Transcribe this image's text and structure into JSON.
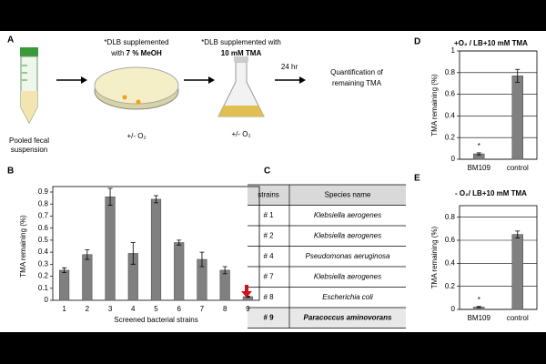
{
  "panel_labels": [
    "A",
    "B",
    "C",
    "D",
    "E"
  ],
  "diagram": {
    "tube_label": [
      "Pooled fecal",
      "suspension"
    ],
    "dish_label": [
      "*DLB supplemented",
      "with ",
      "7 % MeOH"
    ],
    "dish_condition": "+/- O₂",
    "flask_label": [
      "*DLB supplemented with",
      "10 mM TMA"
    ],
    "flask_condition": "+/- O₂",
    "incubation": "24 hr",
    "result": [
      "Quantification of",
      "remaining TMA"
    ]
  },
  "table": {
    "header": [
      "strains",
      "Species name"
    ],
    "rows": [
      [
        "# 1",
        "Klebsiella aerogenes"
      ],
      [
        "# 2",
        "Klebsiella aerogenes"
      ],
      [
        "# 4",
        "Pseudomonas aeruginosa"
      ],
      [
        "# 7",
        "Klebsiella aerogenes"
      ],
      [
        "# 8",
        "Escherichia coli"
      ],
      [
        "# 9",
        "Paracoccus aminovorans"
      ]
    ]
  },
  "chart_data": [
    {
      "type": "bar",
      "y_label": "TMA remaining (%)",
      "x_label": "Screened bacterial strains",
      "categories": [
        "1",
        "2",
        "3",
        "4",
        "5",
        "6",
        "7",
        "8",
        "9"
      ],
      "values": [
        0.25,
        0.38,
        0.86,
        0.39,
        0.84,
        0.48,
        0.34,
        0.25,
        0.03
      ],
      "errors": [
        0.02,
        0.04,
        0.07,
        0.09,
        0.03,
        0.02,
        0.06,
        0.03,
        0.005
      ],
      "color": "#808080",
      "ylim": [
        0,
        0.9
      ],
      "yticks": [
        0,
        0.1,
        0.2,
        0.3,
        0.4,
        0.5,
        0.6,
        0.7,
        0.8,
        0.9
      ],
      "grid": false
    },
    {
      "type": "bar",
      "title": "+O₂ / LB+10 mM TMA",
      "y_label": "TMA remaining (%)",
      "categories": [
        "BM109",
        "control"
      ],
      "values": [
        0.05,
        0.77
      ],
      "errors": [
        0.01,
        0.06
      ],
      "annotation": "*",
      "color": "#808080",
      "ylim": [
        0,
        1
      ],
      "yticks": [
        0,
        0.2,
        0.4,
        0.6,
        0.8,
        1
      ],
      "grid": true
    },
    {
      "type": "bar",
      "title": "- O₂/ LB+10 mM TMA",
      "y_label": "TMA remaining (%)",
      "categories": [
        "BM109",
        "control"
      ],
      "values": [
        0.02,
        0.65
      ],
      "errors": [
        0.005,
        0.03
      ],
      "annotation": "*",
      "color": "#808080",
      "ylim": [
        0,
        0.9
      ],
      "yticks": [
        0,
        0.2,
        0.4,
        0.6,
        0.8
      ],
      "grid": true
    }
  ]
}
